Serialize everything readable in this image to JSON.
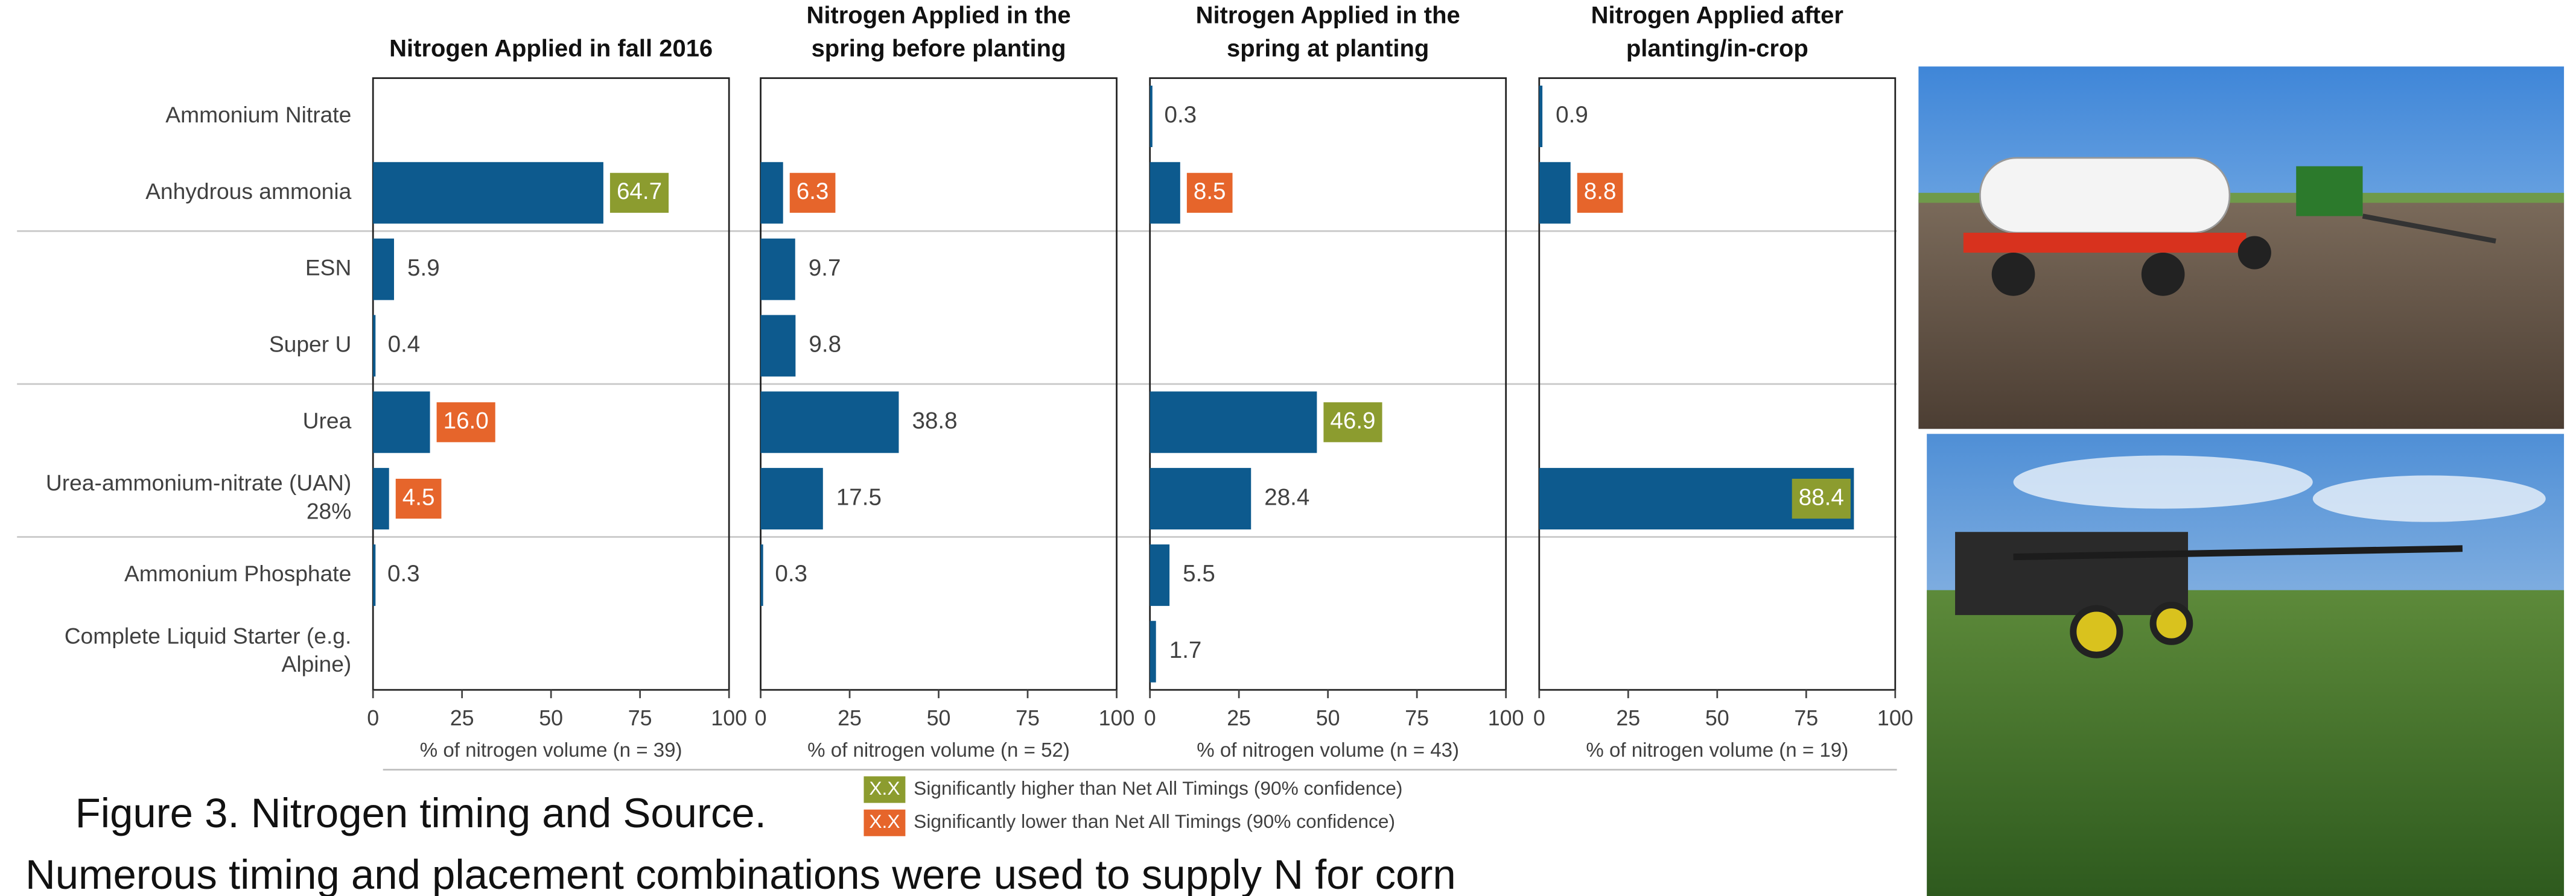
{
  "chart_data": [
    {
      "type": "bar",
      "title": "Nitrogen Applied in fall 2016",
      "categories": [
        "Ammonium Nitrate",
        "Anhydrous ammonia",
        "ESN",
        "Super U",
        "Urea",
        "Urea-ammonium-nitrate (UAN) 28%",
        "Ammonium Phosphate",
        "Complete Liquid Starter (e.g. Alpine)"
      ],
      "values": [
        null,
        64.7,
        5.9,
        0.4,
        16,
        4.5,
        0.3,
        null
      ],
      "value_labels": [
        null,
        "64.7",
        "5.9",
        "0.4",
        "16.0",
        "4.5",
        "0.3",
        null
      ],
      "label_colors": [
        null,
        "#8c9c2f",
        null,
        null,
        "#e6652b",
        "#e6652b",
        null,
        null
      ],
      "color": "#0d5a8e",
      "xlim": [
        0,
        100
      ],
      "xticks": [
        0,
        25,
        50,
        75,
        100
      ],
      "xlabel": "% of nitrogen volume (n = 39)"
    },
    {
      "type": "bar",
      "title": "Nitrogen Applied in the spring before planting",
      "values": [
        null,
        6.3,
        9.7,
        9.8,
        38.8,
        17.5,
        0.3,
        null
      ],
      "value_labels": [
        null,
        "6.3",
        "9.7",
        "9.8",
        "38.8",
        "17.5",
        "0.3",
        null
      ],
      "label_colors": [
        null,
        "#e6652b",
        null,
        null,
        null,
        null,
        null,
        null
      ],
      "color": "#0d5a8e",
      "xlim": [
        0,
        100
      ],
      "xticks": [
        0,
        25,
        50,
        75,
        100
      ],
      "xlabel": "% of nitrogen volume (n = 52)"
    },
    {
      "type": "bar",
      "title": "Nitrogen Applied in the spring at planting",
      "values": [
        0.3,
        8.5,
        null,
        null,
        46.9,
        28.4,
        5.5,
        1.7
      ],
      "value_labels": [
        "0.3",
        "8.5",
        null,
        null,
        "46.9",
        "28.4",
        "5.5",
        "1.7"
      ],
      "label_colors": [
        null,
        "#e6652b",
        null,
        null,
        "#8c9c2f",
        null,
        null,
        null
      ],
      "color": "#0d5a8e",
      "xlim": [
        0,
        100
      ],
      "xticks": [
        0,
        25,
        50,
        75,
        100
      ],
      "xlabel": "% of nitrogen volume (n = 43)"
    },
    {
      "type": "bar",
      "title": "Nitrogen Applied after planting/in-crop",
      "values": [
        0.9,
        8.8,
        null,
        null,
        null,
        88.4,
        null,
        null
      ],
      "value_labels": [
        "0.9",
        "8.8",
        null,
        null,
        null,
        "88.4",
        null,
        null
      ],
      "label_colors": [
        null,
        "#e6652b",
        null,
        null,
        null,
        "#8c9c2f",
        null,
        null
      ],
      "color": "#0d5a8e",
      "xlim": [
        0,
        100
      ],
      "xticks": [
        0,
        25,
        50,
        75,
        100
      ],
      "xlabel": "% of nitrogen volume (n = 19)"
    }
  ],
  "legend": [
    {
      "swatch": "X.X",
      "color": "#8c9c2f",
      "text": "Significantly higher than Net All Timings (90% confidence)"
    },
    {
      "swatch": "X.X",
      "color": "#e6652b",
      "text": "Significantly lower than Net All Timings (90% confidence)"
    }
  ],
  "caption": {
    "title": "Figure 3. Nitrogen timing and Source.",
    "text": "Numerous timing and placement combinations were used to supply N for corn"
  }
}
